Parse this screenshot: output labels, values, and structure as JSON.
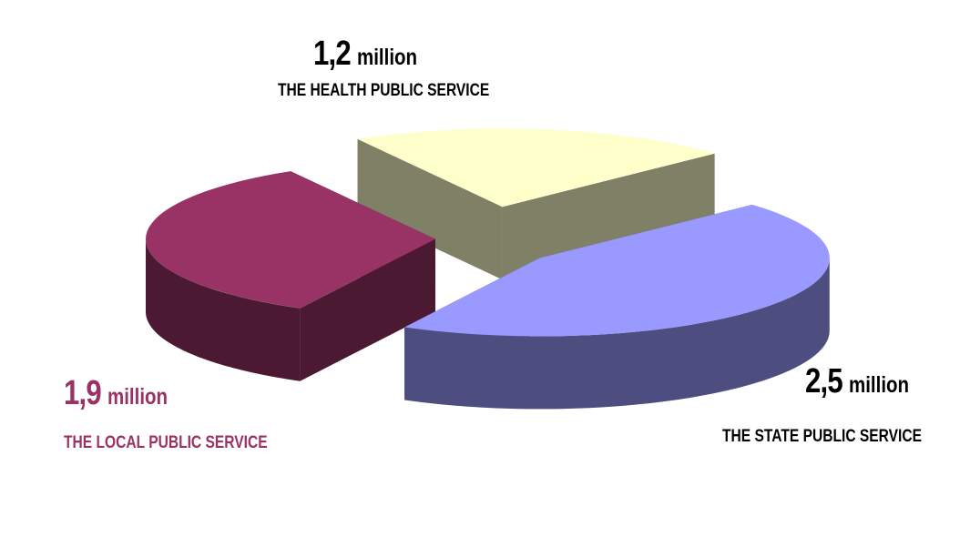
{
  "chart_data": {
    "type": "pie",
    "style": "3d-exploded",
    "slices": [
      {
        "category": "THE HEALTH PUBLIC SERVICE",
        "value": 1.2,
        "value_label": "1,2",
        "unit": "million",
        "top_color": "#ffffcc",
        "side_color": "#808066",
        "text_color": "#000000"
      },
      {
        "category": "THE STATE PUBLIC SERVICE",
        "value": 2.5,
        "value_label": "2,5",
        "unit": "million",
        "top_color": "#9999ff",
        "side_color": "#4d4d80",
        "text_color": "#000000"
      },
      {
        "category": "THE LOCAL PUBLIC SERVICE",
        "value": 1.9,
        "value_label": "1,9",
        "unit": "million",
        "top_color": "#993366",
        "side_color": "#4c1933",
        "text_color": "#993366"
      }
    ]
  }
}
